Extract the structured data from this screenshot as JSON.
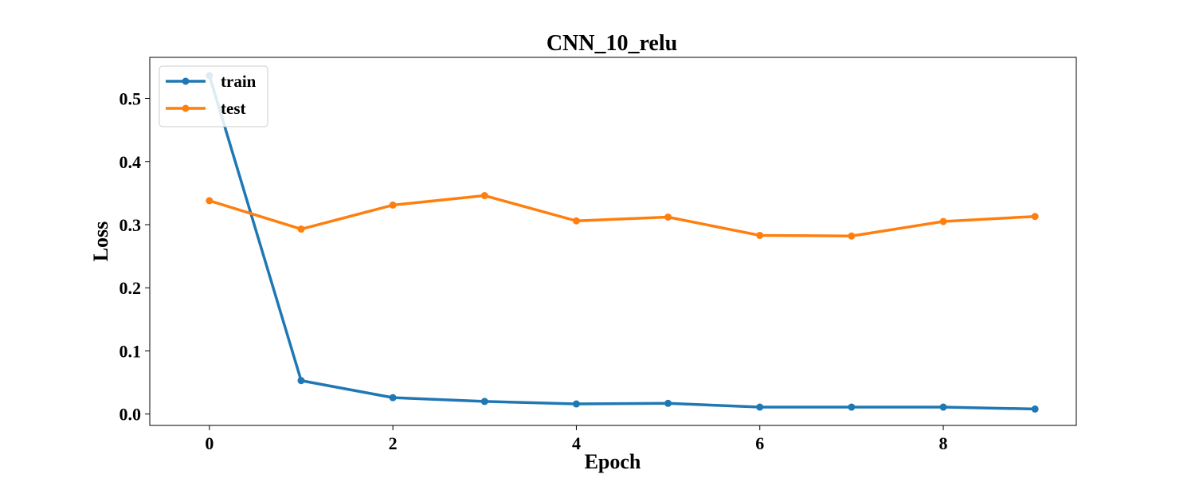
{
  "chart_data": {
    "type": "line",
    "title": "CNN_10_relu",
    "xlabel": "Epoch",
    "ylabel": "Loss",
    "x": [
      0,
      1,
      2,
      3,
      4,
      5,
      6,
      7,
      8,
      9
    ],
    "xlim": [
      -0.65,
      9.45
    ],
    "ylim": [
      -0.018,
      0.565
    ],
    "xticks": [
      0,
      2,
      4,
      6,
      8
    ],
    "xtick_labels": [
      "0",
      "2",
      "4",
      "6",
      "8"
    ],
    "yticks": [
      0.0,
      0.1,
      0.2,
      0.3,
      0.4,
      0.5
    ],
    "ytick_labels": [
      "0.0",
      "0.1",
      "0.2",
      "0.3",
      "0.4",
      "0.5"
    ],
    "grid": false,
    "legend_position": "top-left",
    "series": [
      {
        "name": "train",
        "color": "#1f77b4",
        "values": [
          0.536,
          0.053,
          0.026,
          0.02,
          0.016,
          0.017,
          0.011,
          0.011,
          0.011,
          0.008
        ]
      },
      {
        "name": "test",
        "color": "#ff7f0e",
        "values": [
          0.338,
          0.293,
          0.331,
          0.346,
          0.306,
          0.312,
          0.283,
          0.282,
          0.305,
          0.313
        ]
      }
    ]
  }
}
